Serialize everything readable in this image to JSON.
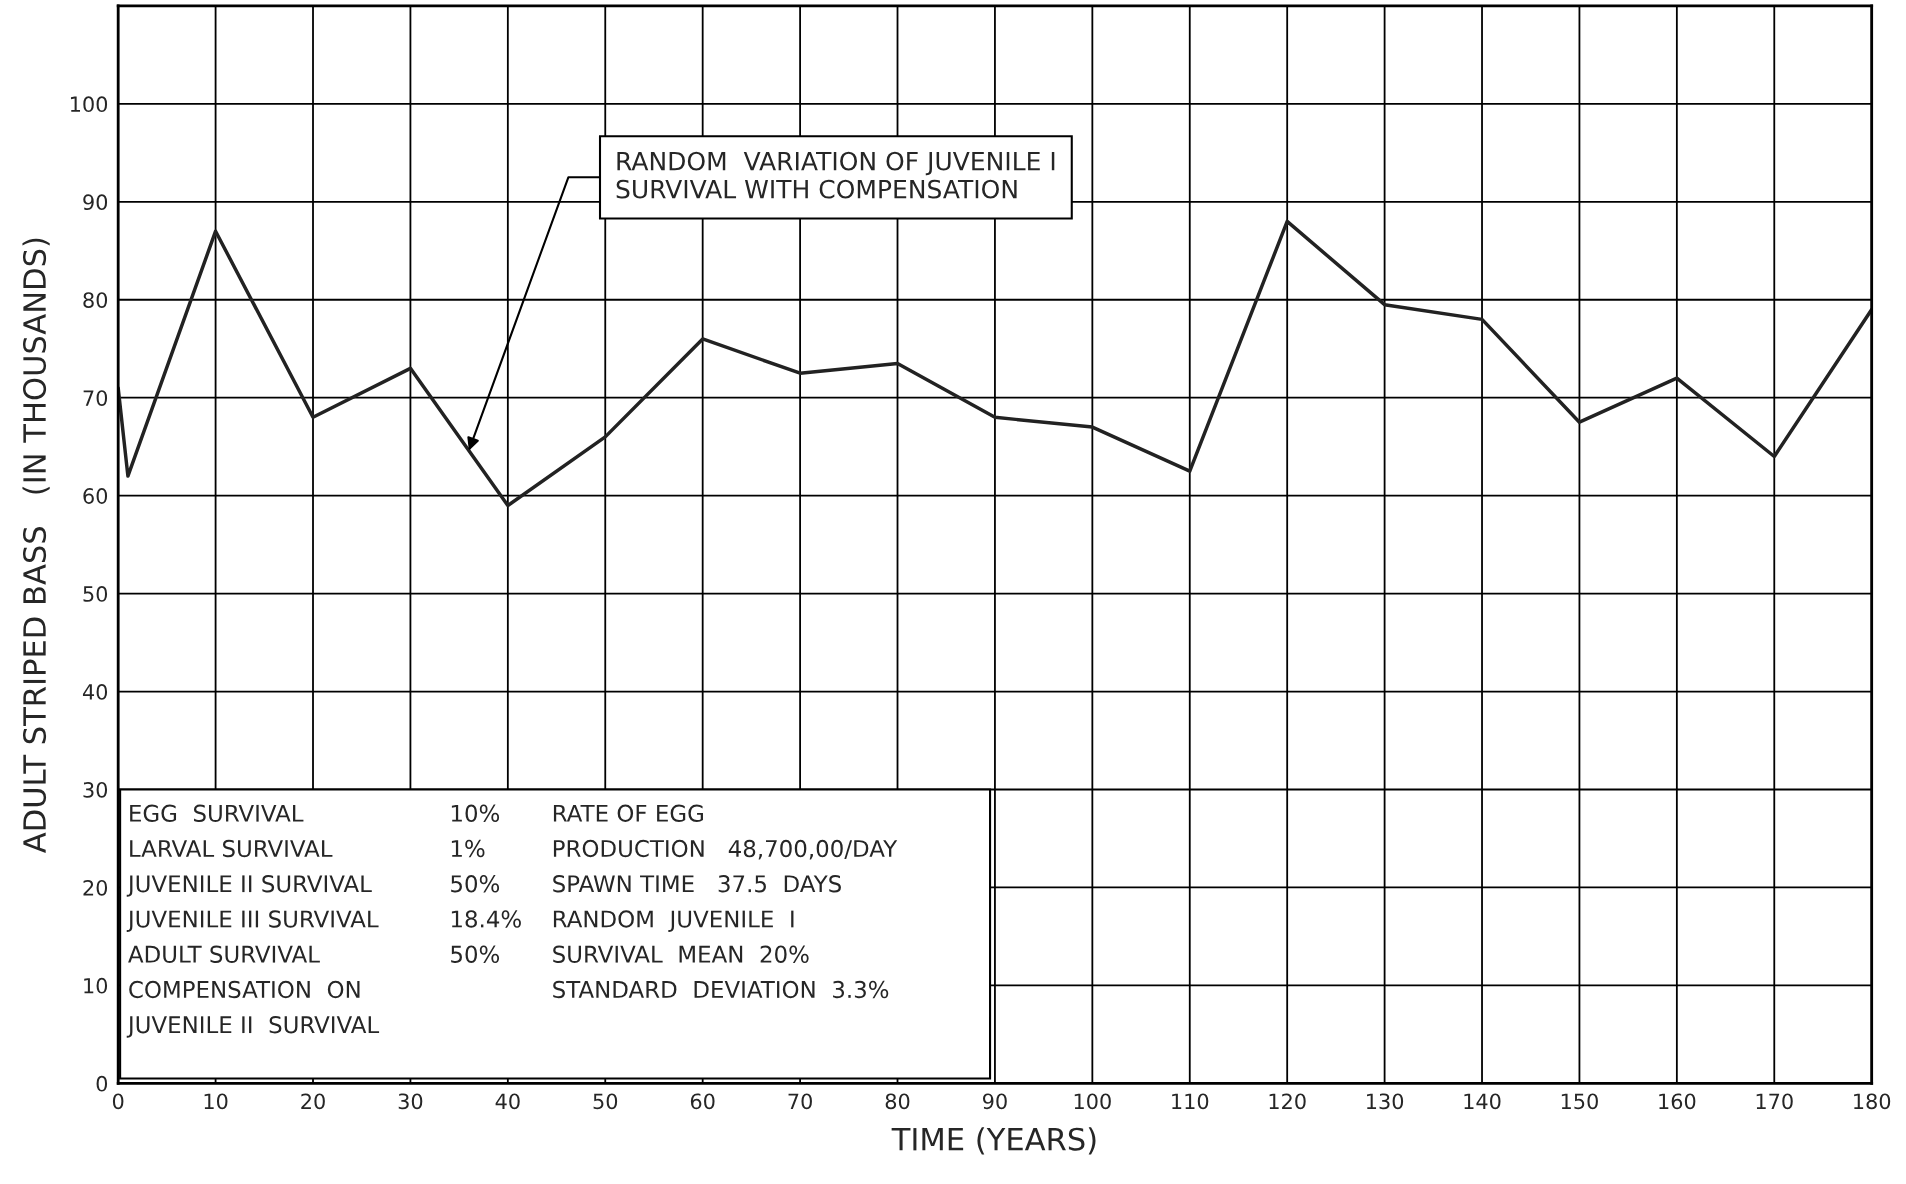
{
  "chart_data": {
    "type": "line",
    "xlabel": "TIME (YEARS)",
    "ylabel": "ADULT STRIPED BASS   (IN THOUSANDS)",
    "x": [
      0,
      1,
      10,
      20,
      30,
      40,
      50,
      60,
      70,
      80,
      90,
      100,
      110,
      120,
      130,
      140,
      150,
      160,
      170,
      180
    ],
    "series": [
      {
        "color": "#222222",
        "values": [
          71,
          62,
          87,
          68,
          73,
          59,
          66,
          76,
          72.5,
          73.5,
          68,
          67,
          62.5,
          88,
          79.5,
          78,
          67.5,
          72,
          64,
          79
        ]
      }
    ],
    "xlim": [
      0,
      180
    ],
    "ylim": [
      0,
      110
    ],
    "xticks": [
      0,
      10,
      20,
      30,
      40,
      50,
      60,
      70,
      80,
      90,
      100,
      110,
      120,
      130,
      140,
      150,
      160,
      170,
      180
    ],
    "yticks": [
      0,
      10,
      20,
      30,
      40,
      50,
      60,
      70,
      80,
      90,
      100,
      {
        "value": 110,
        "label": null
      }
    ],
    "grid": true,
    "marker": "none",
    "line_style": "solid",
    "annotations": [
      {
        "text": "RANDOM  VARIATION OF JUVENILE I\nSURVIVAL WITH COMPENSATION",
        "x": 36,
        "y": 64.6
      },
      "EGG  SURVIVAL\nLARVAL SURVIVAL\nJUVENILE II SURVIVAL\nJUVENILE III SURVIVAL\nADULT SURVIVAL\nCOMPENSATION  ON\nJUVENILE II  SURVIVAL",
      "10%\n1%\n50%\n18.4%\n50%",
      "RATE OF EGG\nPRODUCTION   48,700,00/DAY\nSPAWN TIME   37.5  DAYS\nRANDOM  JUVENILE  I\nSURVIVAL  MEAN  20%\nSTANDARD  DEVIATION  3.3%"
    ]
  }
}
